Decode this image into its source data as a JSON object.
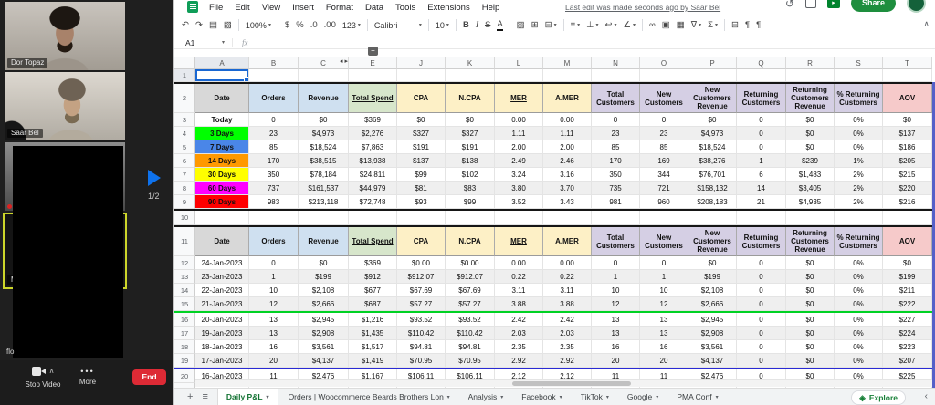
{
  "zoom_panel": {
    "participants": [
      {
        "name": "Dor Topaz"
      },
      {
        "name": "Saar Bel"
      },
      {
        "name": ""
      },
      {
        "name": "M"
      }
    ],
    "extra_participant_label": "flo",
    "page_indicator": "1/2",
    "controls": {
      "stop_video": "Stop Video",
      "more": "More",
      "end": "End"
    }
  },
  "sheets": {
    "menu_items": [
      "File",
      "Edit",
      "View",
      "Insert",
      "Format",
      "Data",
      "Tools",
      "Extensions",
      "Help"
    ],
    "last_edit": "Last edit was made seconds ago by Saar Bel",
    "share_label": "Share",
    "icons": {
      "caret": "▾",
      "hidden_left": "◂",
      "hidden_right": "▸",
      "plus": "+",
      "all_sheets": "≡",
      "history": "↺",
      "meet_glyph": "▸",
      "explore": "◈",
      "collapse_toolbar": "∧",
      "tab_back": "‹",
      "tab_forward": "›",
      "more_dots": "•••",
      "fx": "fx",
      "unhide_plus": "+"
    },
    "toolbar": {
      "items": [
        {
          "name": "undo-icon",
          "glyph": "↶"
        },
        {
          "name": "redo-icon",
          "glyph": "↷"
        },
        {
          "name": "print-icon",
          "glyph": "▤"
        },
        {
          "name": "paint-format-icon",
          "glyph": "▧"
        },
        {
          "divider": true
        },
        {
          "name": "zoom-select",
          "label": "100%",
          "dropdown": true
        },
        {
          "divider": true
        },
        {
          "name": "currency-format-button",
          "glyph": "$"
        },
        {
          "name": "percent-format-button",
          "glyph": "%"
        },
        {
          "name": "decrease-decimals-button",
          "glyph": ".0"
        },
        {
          "name": "increase-decimals-button",
          "glyph": ".00"
        },
        {
          "name": "more-formats-button",
          "label": "123",
          "dropdown": true
        },
        {
          "divider": true
        },
        {
          "name": "font-select",
          "label": "Calibri",
          "dropdown": true
        },
        {
          "divider": true
        },
        {
          "name": "font-size-select",
          "label": "10",
          "dropdown": true
        },
        {
          "divider": true
        },
        {
          "name": "bold-button",
          "glyph": "B"
        },
        {
          "name": "italic-button",
          "glyph": "I"
        },
        {
          "name": "strikethrough-button",
          "glyph": "S"
        },
        {
          "name": "text-color-button",
          "glyph": "A"
        },
        {
          "divider": true
        },
        {
          "name": "fill-color-button",
          "glyph": "▨"
        },
        {
          "name": "borders-button",
          "glyph": "⊞"
        },
        {
          "name": "merge-cells-button",
          "glyph": "⊟",
          "dropdown": true
        },
        {
          "divider": true
        },
        {
          "name": "horizontal-align-button",
          "glyph": "≡",
          "dropdown": true
        },
        {
          "name": "vertical-align-button",
          "glyph": "⊥",
          "dropdown": true
        },
        {
          "name": "text-wrap-button",
          "glyph": "↩",
          "dropdown": true
        },
        {
          "name": "text-rotation-button",
          "glyph": "∠",
          "dropdown": true
        },
        {
          "divider": true
        },
        {
          "name": "insert-link-button",
          "glyph": "∞"
        },
        {
          "name": "insert-comment-button",
          "glyph": "▣"
        },
        {
          "name": "insert-chart-button",
          "glyph": "▦"
        },
        {
          "name": "filter-button",
          "glyph": "∇",
          "dropdown": true
        },
        {
          "name": "functions-button",
          "glyph": "Σ",
          "dropdown": true
        },
        {
          "divider": true
        },
        {
          "name": "sheet-direction-button",
          "glyph": "⊟"
        },
        {
          "name": "text-direction-ltr-button",
          "glyph": "¶"
        },
        {
          "name": "text-direction-rtl-button",
          "glyph": "¶"
        }
      ]
    },
    "formula_bar": {
      "name_box": "A1"
    },
    "grid": {
      "column_letters": [
        "A",
        "B",
        "C",
        "E",
        "J",
        "K",
        "L",
        "M",
        "N",
        "O",
        "P",
        "Q",
        "R",
        "S",
        "T"
      ],
      "row_count": 20
    },
    "table": {
      "headers": [
        {
          "label": "Date",
          "color": "#d8d8d8"
        },
        {
          "label": "Orders",
          "color": "#cfe0f0"
        },
        {
          "label": "Revenue",
          "color": "#cfe0f0"
        },
        {
          "label": "Total Spend",
          "color": "#d7e6cb",
          "underline": true
        },
        {
          "label": "CPA",
          "color": "#fdf0c6"
        },
        {
          "label": "N.CPA",
          "color": "#fdf0c6"
        },
        {
          "label": "MER",
          "color": "#fdf0c6",
          "underline": true
        },
        {
          "label": "A.MER",
          "color": "#fdf0c6"
        },
        {
          "label": "Total Customers",
          "color": "#d5cfe4"
        },
        {
          "label": "New Customers",
          "color": "#d5cfe4"
        },
        {
          "label": "New Customers Revenue",
          "color": "#d5cfe4"
        },
        {
          "label": "Returning Customers",
          "color": "#d5cfe4"
        },
        {
          "label": "Returning Customers Revenue",
          "color": "#d5cfe4"
        },
        {
          "label": "% Returning Customers",
          "color": "#d5cfe4"
        },
        {
          "label": "AOV",
          "color": "#f6caca"
        }
      ],
      "summary_rows": [
        {
          "label": "Today",
          "label_bg": "#ffffff",
          "values": [
            "0",
            "$0",
            "$369",
            "$0",
            "$0",
            "0.00",
            "0.00",
            "0",
            "0",
            "$0",
            "0",
            "$0",
            "0%",
            "$0"
          ]
        },
        {
          "label": "3 Days",
          "label_bg": "#00ff00",
          "values": [
            "23",
            "$4,973",
            "$2,276",
            "$327",
            "$327",
            "1.11",
            "1.11",
            "23",
            "23",
            "$4,973",
            "0",
            "$0",
            "0%",
            "$137"
          ]
        },
        {
          "label": "7 Days",
          "label_bg": "#4a86e8",
          "values": [
            "85",
            "$18,524",
            "$7,863",
            "$191",
            "$191",
            "2.00",
            "2.00",
            "85",
            "85",
            "$18,524",
            "0",
            "$0",
            "0%",
            "$186"
          ]
        },
        {
          "label": "14 Days",
          "label_bg": "#ff9900",
          "values": [
            "170",
            "$38,515",
            "$13,938",
            "$137",
            "$138",
            "2.49",
            "2.46",
            "170",
            "169",
            "$38,276",
            "1",
            "$239",
            "1%",
            "$205"
          ]
        },
        {
          "label": "30 Days",
          "label_bg": "#ffff00",
          "values": [
            "350",
            "$78,184",
            "$24,811",
            "$99",
            "$102",
            "3.24",
            "3.16",
            "350",
            "344",
            "$76,701",
            "6",
            "$1,483",
            "2%",
            "$215"
          ]
        },
        {
          "label": "60 Days",
          "label_bg": "#ff00ff",
          "values": [
            "737",
            "$161,537",
            "$44,979",
            "$81",
            "$83",
            "3.80",
            "3.70",
            "735",
            "721",
            "$158,132",
            "14",
            "$3,405",
            "2%",
            "$220"
          ]
        },
        {
          "label": "90 Days",
          "label_bg": "#ff0000",
          "values": [
            "983",
            "$213,118",
            "$72,748",
            "$93",
            "$99",
            "3.52",
            "3.43",
            "981",
            "960",
            "$208,183",
            "21",
            "$4,935",
            "2%",
            "$216"
          ]
        }
      ],
      "daily_rows": [
        {
          "date": "24-Jan-2023",
          "values": [
            "0",
            "$0",
            "$369",
            "$0.00",
            "$0.00",
            "0.00",
            "0.00",
            "0",
            "0",
            "$0",
            "0",
            "$0",
            "0%",
            "$0"
          ]
        },
        {
          "date": "23-Jan-2023",
          "values": [
            "1",
            "$199",
            "$912",
            "$912.07",
            "$912.07",
            "0.22",
            "0.22",
            "1",
            "1",
            "$199",
            "0",
            "$0",
            "0%",
            "$199"
          ]
        },
        {
          "date": "22-Jan-2023",
          "values": [
            "10",
            "$2,108",
            "$677",
            "$67.69",
            "$67.69",
            "3.11",
            "3.11",
            "10",
            "10",
            "$2,108",
            "0",
            "$0",
            "0%",
            "$211"
          ]
        },
        {
          "date": "21-Jan-2023",
          "values": [
            "12",
            "$2,666",
            "$687",
            "$57.27",
            "$57.27",
            "3.88",
            "3.88",
            "12",
            "12",
            "$2,666",
            "0",
            "$0",
            "0%",
            "$222"
          ],
          "separator": "green"
        },
        {
          "date": "20-Jan-2023",
          "values": [
            "13",
            "$2,945",
            "$1,216",
            "$93.52",
            "$93.52",
            "2.42",
            "2.42",
            "13",
            "13",
            "$2,945",
            "0",
            "$0",
            "0%",
            "$227"
          ]
        },
        {
          "date": "19-Jan-2023",
          "values": [
            "13",
            "$2,908",
            "$1,435",
            "$110.42",
            "$110.42",
            "2.03",
            "2.03",
            "13",
            "13",
            "$2,908",
            "0",
            "$0",
            "0%",
            "$224"
          ]
        },
        {
          "date": "18-Jan-2023",
          "values": [
            "16",
            "$3,561",
            "$1,517",
            "$94.81",
            "$94.81",
            "2.35",
            "2.35",
            "16",
            "16",
            "$3,561",
            "0",
            "$0",
            "0%",
            "$223"
          ]
        },
        {
          "date": "17-Jan-2023",
          "values": [
            "20",
            "$4,137",
            "$1,419",
            "$70.95",
            "$70.95",
            "2.92",
            "2.92",
            "20",
            "20",
            "$4,137",
            "0",
            "$0",
            "0%",
            "$207"
          ],
          "separator": "blue"
        },
        {
          "date": "16-Jan-2023",
          "values": [
            "11",
            "$2,476",
            "$1,167",
            "$106.11",
            "$106.11",
            "2.12",
            "2.12",
            "11",
            "11",
            "$2,476",
            "0",
            "$0",
            "0%",
            "$225"
          ]
        }
      ]
    },
    "tabs": {
      "items": [
        {
          "label": "Daily P&L",
          "active": true
        },
        {
          "label": "Orders | Woocommerce Beards Brothers London"
        },
        {
          "label": "Analysis"
        },
        {
          "label": "Facebook"
        },
        {
          "label": "TikTok"
        },
        {
          "label": "Google"
        },
        {
          "label": "PMA Conf"
        }
      ],
      "explore_label": "Explore"
    },
    "colors": {
      "accent_green": "#188038",
      "selection_blue": "#1967d2",
      "separator_green": "#00d224",
      "separator_blue": "#2a2ad4",
      "table_border": "#161616",
      "right_border": "#5560c8"
    }
  }
}
